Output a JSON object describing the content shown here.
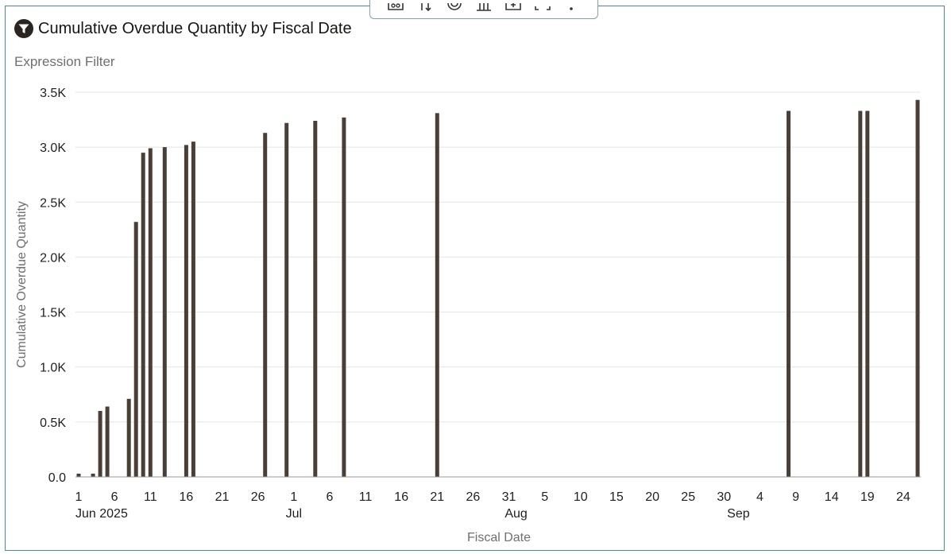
{
  "header": {
    "title": "Cumulative Overdue Quantity by Fiscal Date",
    "subtitle": "Expression Filter",
    "filter_icon": "filter-icon"
  },
  "toolbar": {
    "icons": [
      "map-icon",
      "sort-icon",
      "target-icon",
      "bar-chart-icon",
      "add-icon",
      "fullscreen-icon",
      "more-icon"
    ]
  },
  "colors": {
    "bar": "#4a3f37",
    "grid": "#e4e4e4",
    "border": "#4d8a96"
  },
  "chart_data": {
    "type": "bar",
    "xlabel": "Fiscal Date",
    "ylabel": "Cumulative Overdue Quantity",
    "ylim": [
      0,
      3500
    ],
    "y_ticks": [
      "0.0",
      "0.5K",
      "1.0K",
      "1.5K",
      "2.0K",
      "2.5K",
      "3.0K",
      "3.5K"
    ],
    "x_day_ticks": [
      {
        "date": "2025-06-01",
        "label": "1"
      },
      {
        "date": "2025-06-06",
        "label": "6"
      },
      {
        "date": "2025-06-11",
        "label": "11"
      },
      {
        "date": "2025-06-16",
        "label": "16"
      },
      {
        "date": "2025-06-21",
        "label": "21"
      },
      {
        "date": "2025-06-26",
        "label": "26"
      },
      {
        "date": "2025-07-01",
        "label": "1"
      },
      {
        "date": "2025-07-06",
        "label": "6"
      },
      {
        "date": "2025-07-11",
        "label": "11"
      },
      {
        "date": "2025-07-16",
        "label": "16"
      },
      {
        "date": "2025-07-21",
        "label": "21"
      },
      {
        "date": "2025-07-26",
        "label": "26"
      },
      {
        "date": "2025-07-31",
        "label": "31"
      },
      {
        "date": "2025-08-05",
        "label": "5"
      },
      {
        "date": "2025-08-10",
        "label": "10"
      },
      {
        "date": "2025-08-15",
        "label": "15"
      },
      {
        "date": "2025-08-20",
        "label": "20"
      },
      {
        "date": "2025-08-25",
        "label": "25"
      },
      {
        "date": "2025-08-30",
        "label": "30"
      },
      {
        "date": "2025-09-04",
        "label": "4"
      },
      {
        "date": "2025-09-09",
        "label": "9"
      },
      {
        "date": "2025-09-14",
        "label": "14"
      },
      {
        "date": "2025-09-19",
        "label": "19"
      },
      {
        "date": "2025-09-24",
        "label": "24"
      }
    ],
    "x_month_ticks": [
      {
        "date": "2025-06-01",
        "label": "Jun 2025"
      },
      {
        "date": "2025-07-01",
        "label": "Jul"
      },
      {
        "date": "2025-08-01",
        "label": "Aug"
      },
      {
        "date": "2025-09-01",
        "label": "Sep"
      }
    ],
    "x_range": [
      "2025-06-01",
      "2025-09-26"
    ],
    "points": [
      {
        "date": "2025-06-01",
        "value": 30
      },
      {
        "date": "2025-06-03",
        "value": 30
      },
      {
        "date": "2025-06-04",
        "value": 600
      },
      {
        "date": "2025-06-05",
        "value": 640
      },
      {
        "date": "2025-06-08",
        "value": 710
      },
      {
        "date": "2025-06-09",
        "value": 2320
      },
      {
        "date": "2025-06-10",
        "value": 2950
      },
      {
        "date": "2025-06-11",
        "value": 2990
      },
      {
        "date": "2025-06-13",
        "value": 3000
      },
      {
        "date": "2025-06-16",
        "value": 3020
      },
      {
        "date": "2025-06-17",
        "value": 3050
      },
      {
        "date": "2025-06-27",
        "value": 3130
      },
      {
        "date": "2025-06-30",
        "value": 3220
      },
      {
        "date": "2025-07-04",
        "value": 3240
      },
      {
        "date": "2025-07-08",
        "value": 3270
      },
      {
        "date": "2025-07-21",
        "value": 3310
      },
      {
        "date": "2025-09-08",
        "value": 3330
      },
      {
        "date": "2025-09-18",
        "value": 3330
      },
      {
        "date": "2025-09-19",
        "value": 3330
      },
      {
        "date": "2025-09-26",
        "value": 3430
      }
    ]
  }
}
